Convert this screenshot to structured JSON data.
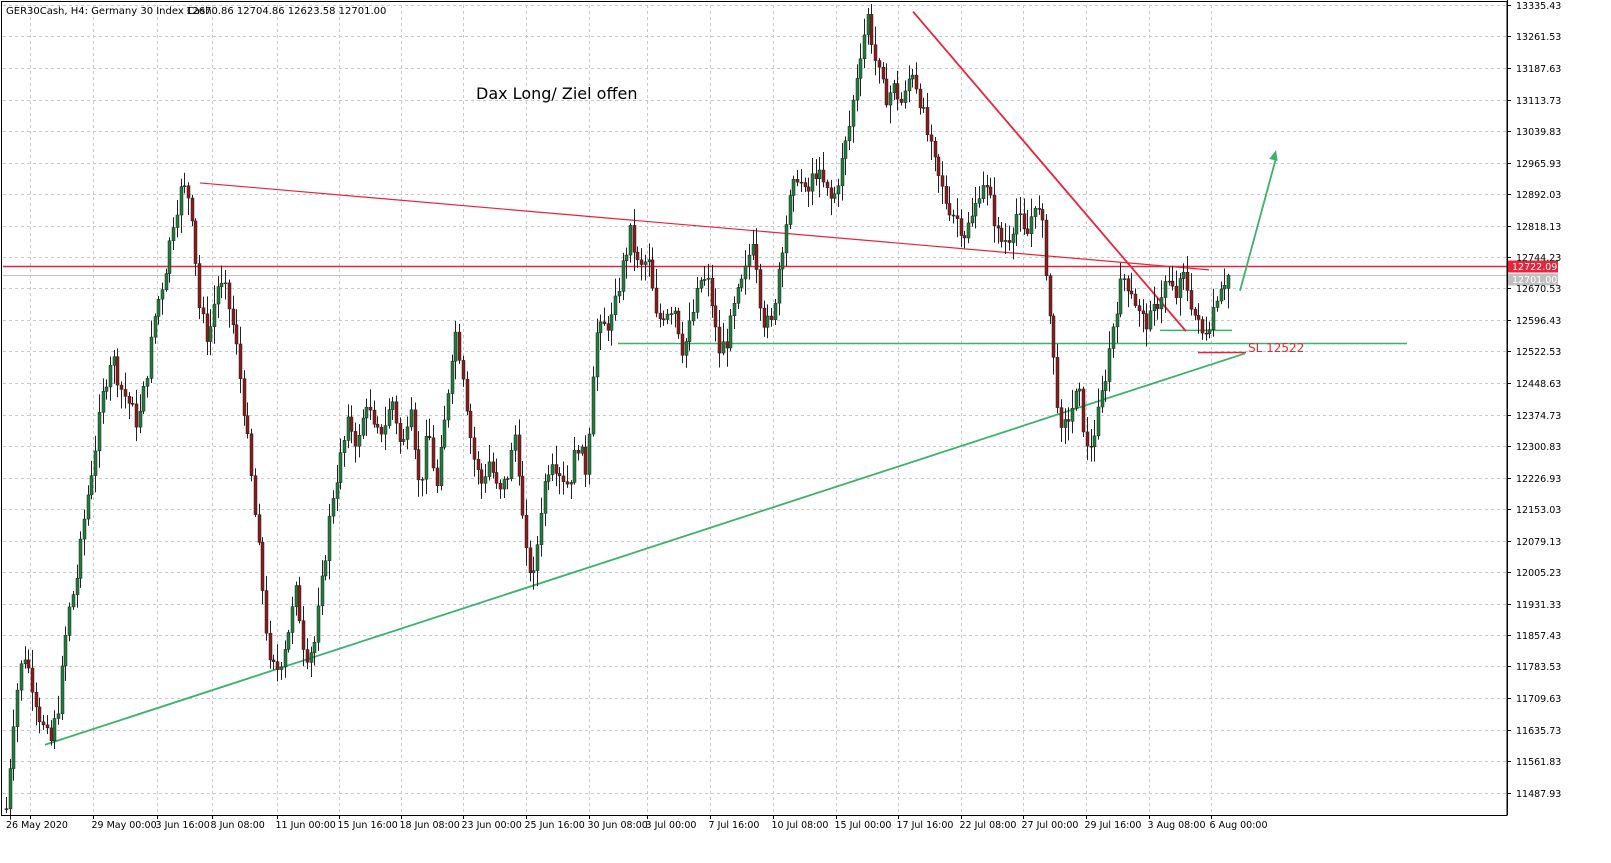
{
  "chart_info": {
    "symbol": "GER30Cash, H4:  Germany 30 Index Cash",
    "ohlc": "12670.86 12704.86 12623.58 12701.00"
  },
  "annotations": {
    "note": "Dax Long/ Ziel offen",
    "stop_loss": "SL 12522"
  },
  "price_badges": {
    "red_line": "12722.09",
    "bid": "12701.00"
  },
  "colors": {
    "background": "#ffffff",
    "grid": "#c9c9c9",
    "bull_candle": "#1e7d3c",
    "bear_candle": "#8b1a1a",
    "red_line": "#e8233c",
    "green_line": "#3bb26a",
    "bid_line": "#c0c0c0"
  },
  "chart_data": {
    "type": "candlestick",
    "title": "GER30Cash, H4:  Germany 30 Index Cash",
    "ylim": [
      11420,
      13340
    ],
    "y_ticks": [
      "13335.43",
      "13261.53",
      "13187.63",
      "13113.73",
      "13039.83",
      "12965.93",
      "12892.03",
      "12818.13",
      "12744.23",
      "12670.53",
      "12596.43",
      "12522.53",
      "12448.63",
      "12374.73",
      "12300.83",
      "12226.93",
      "12153.03",
      "12079.13",
      "12005.23",
      "11931.33",
      "11857.43",
      "11783.53",
      "11709.63",
      "11635.73",
      "11561.83",
      "11487.93"
    ],
    "x_ticks": [
      "26 May 2020",
      "29 May 00:00",
      "3 Jun 16:00",
      "8 Jun 08:00",
      "11 Jun 00:00",
      "15 Jun 16:00",
      "18 Jun 08:00",
      "23 Jun 00:00",
      "25 Jun 16:00",
      "30 Jun 08:00",
      "3 Jul 00:00",
      "7 Jul 16:00",
      "10 Jul 08:00",
      "15 Jul 00:00",
      "17 Jul 16:00",
      "22 Jul 08:00",
      "27 Jul 00:00",
      "29 Jul 16:00",
      "3 Aug 08:00",
      "6 Aug 00:00"
    ],
    "grid": true,
    "close_path": [
      11450,
      11700,
      11820,
      11740,
      11650,
      11600,
      11700,
      11900,
      11990,
      12150,
      12280,
      12420,
      12520,
      12440,
      12400,
      12350,
      12470,
      12620,
      12700,
      12830,
      12910,
      12880,
      12620,
      12550,
      12680,
      12660,
      12560,
      12400,
      12200,
      12000,
      11780,
      11780,
      11860,
      11960,
      11810,
      11830,
      11990,
      12170,
      12270,
      12360,
      12300,
      12410,
      12320,
      12350,
      12410,
      12280,
      12420,
      12190,
      12340,
      12200,
      12380,
      12580,
      12470,
      12290,
      12210,
      12270,
      12180,
      12230,
      12340,
      12050,
      11990,
      12190,
      12280,
      12240,
      12210,
      12310,
      12240,
      12560,
      12580,
      12600,
      12710,
      12800,
      12710,
      12740,
      12590,
      12620,
      12630,
      12520,
      12600,
      12690,
      12680,
      12520,
      12550,
      12640,
      12700,
      12800,
      12600,
      12580,
      12740,
      12860,
      12940,
      12880,
      12950,
      12910,
      12870,
      12960,
      13060,
      13210,
      13310,
      13190,
      13120,
      13140,
      13100,
      13190,
      13110,
      13010,
      12930,
      12870,
      12840,
      12800,
      12840,
      12930,
      12870,
      12780,
      12790,
      12850,
      12780,
      12880,
      12800,
      12530,
      12320,
      12380,
      12430,
      12280,
      12350,
      12460,
      12600,
      12700,
      12670,
      12600,
      12590,
      12640,
      12690,
      12650,
      12700,
      12620,
      12560,
      12600,
      12680,
      12701
    ],
    "horizontal_levels": [
      12722.09,
      12542,
      12522
    ],
    "trendlines": [
      {
        "color": "red",
        "from": [
          "8 Jun 08:00",
          12918
        ],
        "to": [
          "6 Aug 00:00",
          12714
        ]
      },
      {
        "color": "red",
        "from": [
          "20 Jul 04:00",
          13320
        ],
        "to": [
          "4 Aug 20:00",
          12570
        ]
      },
      {
        "color": "green",
        "from": [
          "26 May 2020",
          11600
        ],
        "to": [
          "7 Aug 04:00",
          12518
        ]
      }
    ],
    "projection_arrow": {
      "from": [
        "7 Aug 04:00",
        12665
      ],
      "to": [
        "8 Aug 04:00",
        12995
      ]
    }
  }
}
